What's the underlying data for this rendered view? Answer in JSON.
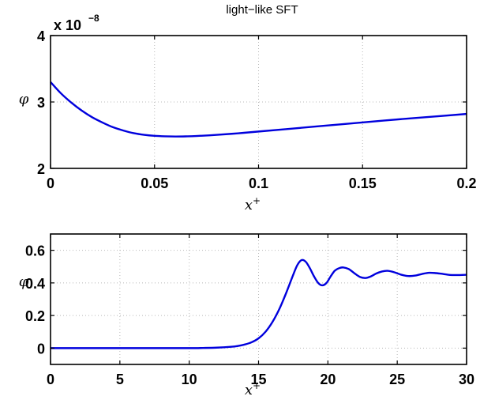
{
  "chart_data": [
    {
      "type": "line",
      "title": "light−like SFT",
      "xlabel": "x",
      "xlabel_sup": "+",
      "ylabel": "φ",
      "exponent_label": "x 10",
      "exponent_power": "−8",
      "xlim": [
        0,
        0.2
      ],
      "ylim": [
        2,
        4
      ],
      "grid": true,
      "xticks": [
        "0",
        "0.05",
        "0.1",
        "0.15",
        "0.2"
      ],
      "xtick_values": [
        0,
        0.05,
        0.1,
        0.15,
        0.2
      ],
      "yticks": [
        "2",
        "3",
        "4"
      ],
      "ytick_values": [
        2,
        3,
        4
      ],
      "series": [
        {
          "color": "#0000dd",
          "x": [
            0,
            0.005,
            0.01,
            0.015,
            0.02,
            0.025,
            0.03,
            0.035,
            0.04,
            0.045,
            0.05,
            0.055,
            0.06,
            0.065,
            0.07,
            0.08,
            0.09,
            0.1,
            0.12,
            0.14,
            0.16,
            0.18,
            0.2
          ],
          "y": [
            3.3,
            3.13,
            2.99,
            2.87,
            2.77,
            2.69,
            2.62,
            2.57,
            2.53,
            2.505,
            2.49,
            2.483,
            2.48,
            2.482,
            2.487,
            2.505,
            2.528,
            2.555,
            2.61,
            2.665,
            2.72,
            2.77,
            2.82
          ]
        }
      ]
    },
    {
      "type": "line",
      "xlabel": "x",
      "xlabel_sup": "+",
      "ylabel": "φ",
      "xlim": [
        0,
        30
      ],
      "ylim": [
        -0.1,
        0.7
      ],
      "grid": true,
      "xticks": [
        "0",
        "5",
        "10",
        "15",
        "20",
        "25",
        "30"
      ],
      "xtick_values": [
        0,
        5,
        10,
        15,
        20,
        25,
        30
      ],
      "yticks": [
        "0",
        "0.2",
        "0.4",
        "0.6"
      ],
      "ytick_values": [
        0,
        0.2,
        0.4,
        0.6
      ],
      "series": [
        {
          "color": "#0000dd",
          "x": [
            0,
            5,
            10,
            11,
            12,
            13,
            13.5,
            14,
            14.5,
            15,
            15.5,
            16,
            16.5,
            17,
            17.5,
            17.8,
            18.1,
            18.4,
            18.7,
            19,
            19.3,
            19.6,
            19.9,
            20.2,
            20.5,
            20.8,
            21.1,
            21.5,
            21.9,
            22.3,
            22.7,
            23.1,
            23.5,
            23.9,
            24.3,
            24.8,
            25.3,
            25.8,
            26.3,
            26.8,
            27.3,
            27.8,
            28.3,
            28.8,
            29.3,
            30
          ],
          "y": [
            0,
            0,
            0,
            0.001,
            0.003,
            0.008,
            0.013,
            0.022,
            0.036,
            0.06,
            0.1,
            0.16,
            0.24,
            0.34,
            0.45,
            0.51,
            0.54,
            0.53,
            0.49,
            0.44,
            0.4,
            0.385,
            0.4,
            0.44,
            0.475,
            0.49,
            0.495,
            0.485,
            0.46,
            0.437,
            0.43,
            0.44,
            0.458,
            0.47,
            0.474,
            0.465,
            0.45,
            0.442,
            0.445,
            0.455,
            0.462,
            0.46,
            0.455,
            0.449,
            0.448,
            0.45
          ]
        }
      ]
    }
  ]
}
